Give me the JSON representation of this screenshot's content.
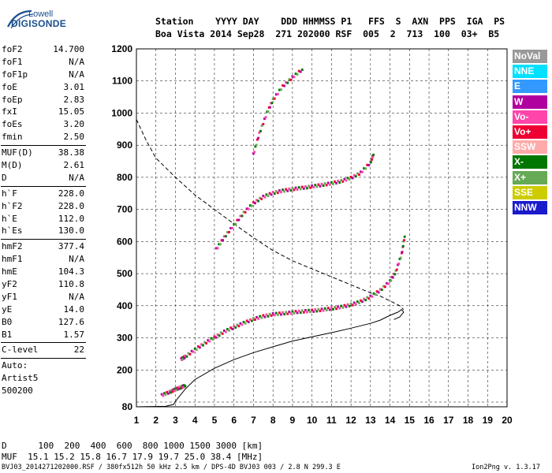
{
  "logo": {
    "line1": "Lowell",
    "line2": "DIGISONDE"
  },
  "header": {
    "line1": "Station    YYYY DAY    DDD HHMMSS P1   FFS  S  AXN  PPS  IGA  PS",
    "line2": "Boa Vista 2014 Sep28  271 202000 RSF  005  2  713  100  03+  B5"
  },
  "params": [
    [
      {
        "k": "foF2",
        "v": "14.700"
      },
      {
        "k": "foF1",
        "v": "N/A"
      },
      {
        "k": "foF1p",
        "v": "N/A"
      },
      {
        "k": "foE",
        "v": "3.01"
      },
      {
        "k": "foEp",
        "v": "2.83"
      },
      {
        "k": "fxI",
        "v": "15.05"
      },
      {
        "k": "foEs",
        "v": "3.20"
      },
      {
        "k": "fmin",
        "v": "2.50"
      }
    ],
    [
      {
        "k": "MUF(D)",
        "v": "38.38"
      },
      {
        "k": "M(D)",
        "v": "2.61"
      },
      {
        "k": "D",
        "v": "N/A"
      }
    ],
    [
      {
        "k": "h`F",
        "v": "228.0"
      },
      {
        "k": "h`F2",
        "v": "228.0"
      },
      {
        "k": "h`E",
        "v": "112.0"
      },
      {
        "k": "h`Es",
        "v": "130.0"
      }
    ],
    [
      {
        "k": "hmF2",
        "v": "377.4"
      },
      {
        "k": "hmF1",
        "v": "N/A"
      },
      {
        "k": "hmE",
        "v": "104.3"
      },
      {
        "k": "yF2",
        "v": "110.8"
      },
      {
        "k": "yF1",
        "v": "N/A"
      },
      {
        "k": "yE",
        "v": "14.0"
      },
      {
        "k": "B0",
        "v": "127.6"
      },
      {
        "k": "B1",
        "v": "1.57"
      }
    ],
    [
      {
        "k": "C-level",
        "v": "22"
      }
    ],
    [
      {
        "k": "Auto:",
        "v": ""
      },
      {
        "k": "Artist5",
        "v": ""
      },
      {
        "k": "500200",
        "v": ""
      }
    ]
  ],
  "legend": [
    {
      "label": "NoVal",
      "color": "#999999"
    },
    {
      "label": "NNE",
      "color": "#00e0ff"
    },
    {
      "label": "E",
      "color": "#3399ff"
    },
    {
      "label": "W",
      "color": "#b0009e"
    },
    {
      "label": "Vo-",
      "color": "#ff44aa"
    },
    {
      "label": "Vo+",
      "color": "#ee0033"
    },
    {
      "label": "SSW",
      "color": "#ffaaaa"
    },
    {
      "label": "X-",
      "color": "#007700"
    },
    {
      "label": "X+",
      "color": "#66aa55"
    },
    {
      "label": "SSE",
      "color": "#cccc00"
    },
    {
      "label": "NNW",
      "color": "#1a1acc"
    }
  ],
  "footer": {
    "d_line": "D      100  200  400  600  800 1000 1500 3000 [km]",
    "muf_line": "MUF  15.1 15.2 15.8 16.7 17.9 19.7 25.0 38.4 [MHz]",
    "file_line": "BVJ03_2014271202000.RSF / 380fx512h 50 kHz 2.5 km / DPS-4D BVJ03 003 / 2.8 N 299.3 E",
    "version": "Ion2Png v. 1.3.17"
  },
  "chart_data": {
    "type": "scatter",
    "xlim": [
      1,
      20
    ],
    "ylim": [
      80,
      1200
    ],
    "x_ticks": [
      1,
      2,
      3,
      4,
      5,
      6,
      7,
      8,
      9,
      10,
      11,
      12,
      13,
      14,
      15,
      16,
      17,
      18,
      19,
      20
    ],
    "y_ticks": [
      80,
      100,
      200,
      300,
      400,
      500,
      600,
      700,
      800,
      900,
      1000,
      1100,
      1200
    ],
    "grid": "dashed vertical and horizontal",
    "series": [
      {
        "points": [
          [
            3.3,
            232
          ],
          [
            3.5,
            240
          ],
          [
            4,
            262
          ],
          [
            4.5,
            282
          ],
          [
            5,
            300
          ],
          [
            5.5,
            318
          ],
          [
            6,
            332
          ],
          [
            6.5,
            345
          ],
          [
            7,
            357
          ],
          [
            7.5,
            366
          ],
          [
            8,
            372
          ],
          [
            8.5,
            375
          ],
          [
            9,
            378
          ],
          [
            9.5,
            381
          ],
          [
            10,
            383
          ],
          [
            10.5,
            386
          ],
          [
            11,
            390
          ],
          [
            11.5,
            395
          ],
          [
            12,
            402
          ],
          [
            12.5,
            412
          ],
          [
            13,
            427
          ],
          [
            13.5,
            447
          ],
          [
            14,
            475
          ],
          [
            14.3,
            505
          ],
          [
            14.6,
            560
          ],
          [
            14.75,
            615
          ]
        ]
      },
      {
        "points": [
          [
            5.1,
            575
          ],
          [
            5.5,
            612
          ],
          [
            6,
            650
          ],
          [
            6.5,
            688
          ],
          [
            7,
            718
          ],
          [
            7.5,
            738
          ],
          [
            8,
            750
          ],
          [
            8.5,
            757
          ],
          [
            9,
            762
          ],
          [
            9.5,
            766
          ],
          [
            10,
            770
          ],
          [
            10.5,
            775
          ],
          [
            11,
            780
          ],
          [
            11.5,
            787
          ],
          [
            12,
            797
          ],
          [
            12.5,
            813
          ],
          [
            13,
            845
          ],
          [
            13.15,
            870
          ]
        ]
      },
      {
        "points": [
          [
            7,
            870
          ],
          [
            7.3,
            935
          ],
          [
            7.7,
            1000
          ],
          [
            8,
            1040
          ],
          [
            8.5,
            1082
          ],
          [
            9,
            1110
          ],
          [
            9.5,
            1135
          ]
        ]
      },
      {
        "points": [
          [
            2.3,
            120
          ],
          [
            2.7,
            130
          ],
          [
            3,
            138
          ],
          [
            3.3,
            145
          ],
          [
            3.5,
            150
          ]
        ]
      }
    ],
    "profile": [
      [
        1,
        80
      ],
      [
        2.5,
        82
      ],
      [
        2.9,
        90
      ],
      [
        3.1,
        110
      ],
      [
        3.5,
        140
      ],
      [
        4,
        170
      ],
      [
        5,
        205
      ],
      [
        6,
        232
      ],
      [
        7,
        254
      ],
      [
        8,
        272
      ],
      [
        9,
        290
      ],
      [
        10,
        303
      ],
      [
        11,
        316
      ],
      [
        12,
        330
      ],
      [
        13,
        345
      ],
      [
        13.5,
        355
      ],
      [
        14,
        370
      ],
      [
        14.4,
        380
      ],
      [
        14.6,
        388
      ],
      [
        14.7,
        380
      ],
      [
        14.5,
        365
      ],
      [
        14.2,
        357
      ]
    ],
    "muf_curve": [
      [
        1,
        980
      ],
      [
        1.5,
        915
      ],
      [
        2,
        860
      ],
      [
        3,
        800
      ],
      [
        4,
        745
      ],
      [
        5,
        700
      ],
      [
        6,
        655
      ],
      [
        7,
        612
      ],
      [
        8,
        572
      ],
      [
        9,
        540
      ],
      [
        10,
        515
      ],
      [
        11,
        490
      ],
      [
        12,
        465
      ],
      [
        13,
        440
      ],
      [
        13.5,
        430
      ],
      [
        14,
        415
      ],
      [
        14.5,
        400
      ],
      [
        14.7,
        388
      ]
    ]
  }
}
